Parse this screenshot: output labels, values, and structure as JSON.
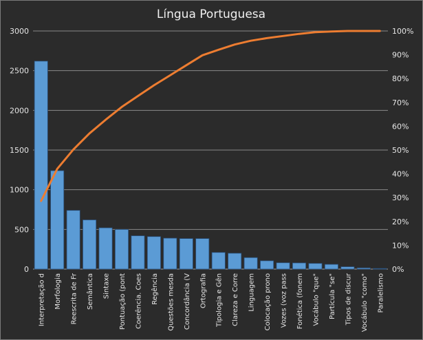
{
  "chart_data": {
    "type": "bar",
    "title": "Língua Portuguesa",
    "xlabel": "",
    "ylabel": "",
    "ylim": [
      0,
      3000
    ],
    "y_ticks": [
      "0",
      "500",
      "1000",
      "1500",
      "2000",
      "2500",
      "3000"
    ],
    "y2lim": [
      0,
      100
    ],
    "y2_ticks": [
      "0%",
      "10%",
      "20%",
      "30%",
      "40%",
      "50%",
      "60%",
      "70%",
      "80%",
      "90%",
      "100%"
    ],
    "grid": true,
    "categories": [
      "Interpretação d",
      "Morfologia",
      "Reescrita de Fr",
      "Semântica",
      "Sintaxe",
      "Pontuação (pont",
      "Coerência. Coes",
      "Regência",
      "Questões mesda",
      "Concordância (V",
      "Ortografia",
      "Tipologia e Gên",
      "Clareza e Corre",
      "Linguagem",
      "Colocação prono",
      "Vozes (voz pass",
      "Fonética (fonem",
      "Vocábulo \"que\"",
      "Partícula \"se\"",
      "Tipos de discur",
      "Vocábulo \"como\"",
      "Paralelismo"
    ],
    "series": [
      {
        "type": "bar",
        "axis": "left",
        "color": "#5b9bd5",
        "values": [
          2620,
          1240,
          740,
          620,
          520,
          500,
          420,
          410,
          390,
          385,
          385,
          210,
          200,
          145,
          105,
          80,
          78,
          72,
          60,
          30,
          15,
          8
        ]
      },
      {
        "type": "line",
        "axis": "right",
        "color": "#ed7d31",
        "values": [
          28.6,
          42.1,
          50.2,
          57.0,
          62.7,
          68.1,
          72.7,
          77.2,
          81.4,
          85.6,
          89.8,
          92.1,
          94.3,
          95.9,
          97.0,
          97.9,
          98.8,
          99.5,
          99.8,
          100.0,
          100.0,
          100.0
        ]
      }
    ]
  }
}
